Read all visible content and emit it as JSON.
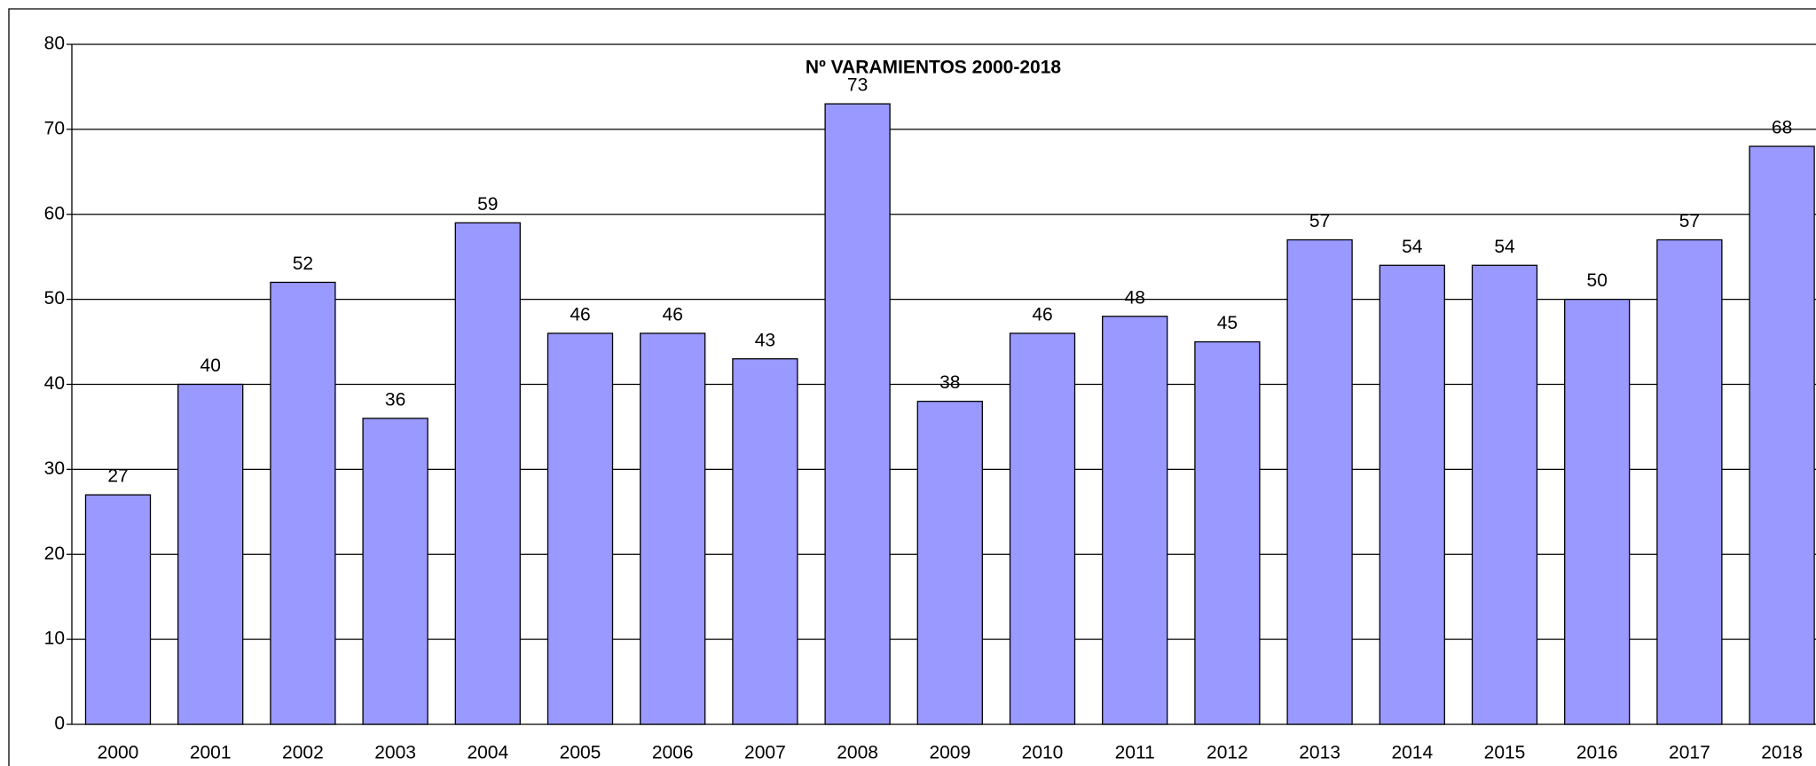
{
  "chart_data": {
    "type": "bar",
    "title": "Nº VARAMIENTOS 2000-2018",
    "categories": [
      "2000",
      "2001",
      "2002",
      "2003",
      "2004",
      "2005",
      "2006",
      "2007",
      "2008",
      "2009",
      "2010",
      "2011",
      "2012",
      "2013",
      "2014",
      "2015",
      "2016",
      "2017",
      "2018"
    ],
    "values": [
      27,
      40,
      52,
      36,
      59,
      46,
      46,
      43,
      73,
      38,
      46,
      48,
      45,
      57,
      54,
      54,
      50,
      57,
      68
    ],
    "color": "#9999ff",
    "ylim": [
      0,
      80
    ],
    "yticks": [
      0,
      10,
      20,
      30,
      40,
      50,
      60,
      70,
      80
    ],
    "grid": true
  }
}
